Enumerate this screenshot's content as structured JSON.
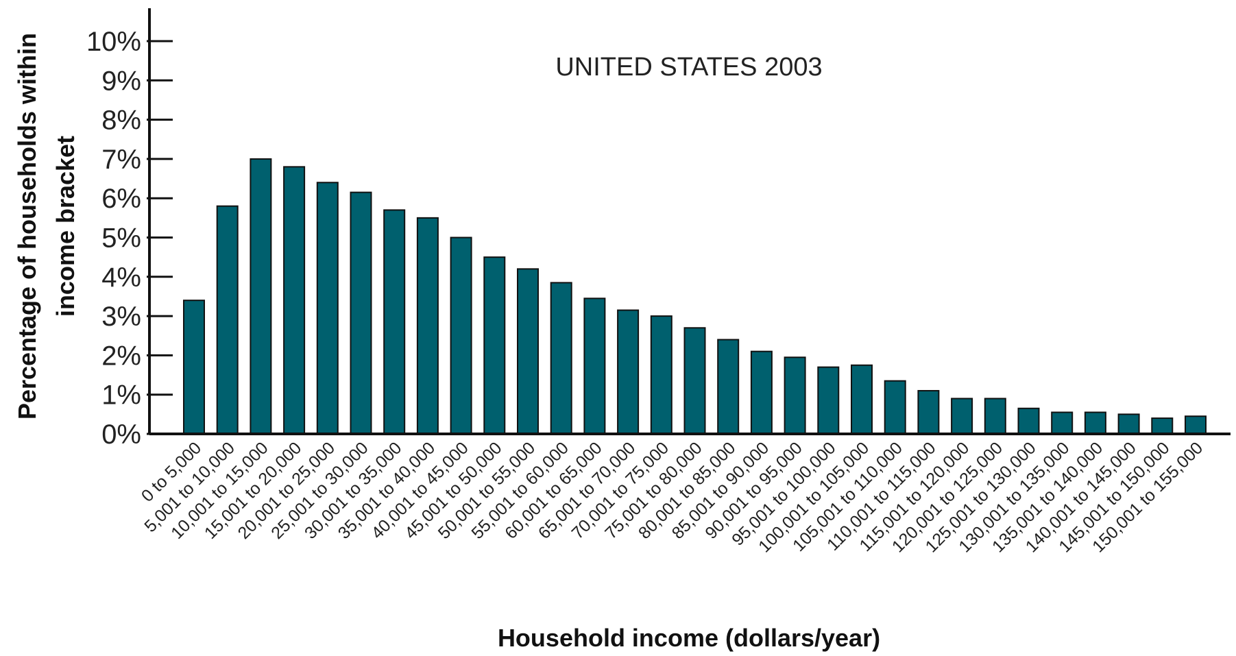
{
  "chart_data": {
    "type": "bar",
    "title": "UNITED STATES 2003",
    "xlabel": "Household income (dollars/year)",
    "ylabel_lines": [
      "Percentage of households within",
      "income bracket"
    ],
    "ylim": [
      0,
      10
    ],
    "yticks": [
      0,
      1,
      2,
      3,
      4,
      5,
      6,
      7,
      8,
      9,
      10
    ],
    "ytick_labels": [
      "0%",
      "1%",
      "2%",
      "3%",
      "4%",
      "5%",
      "6%",
      "7%",
      "8%",
      "9%",
      "10%"
    ],
    "grid": false,
    "bar_color": "#00606e",
    "categories": [
      "0 to 5,000",
      "5,001 to 10,000",
      "10,001 to 15,000",
      "15,001 to 20,000",
      "20,001 to 25,000",
      "25,001 to 30,000",
      "30,001 to 35,000",
      "35,001 to 40,000",
      "40,001 to 45,000",
      "45,001 to 50,000",
      "50,001 to 55,000",
      "55,001 to 60,000",
      "60,001 to 65,000",
      "65,001 to 70,000",
      "70,001 to 75,000",
      "75,001 to 80,000",
      "80,001 to 85,000",
      "85,001 to 90,000",
      "90,001 to 95,000",
      "95,001 to 100,000",
      "100,001 to 105,000",
      "105,001 to 110,000",
      "110,001 to 115,000",
      "115,001 to 120,000",
      "120,001 to 125,000",
      "125,001 to 130,000",
      "130,001 to 135,000",
      "135,001 to 140,000",
      "140,001 to 145,000",
      "145,001 to 150,000",
      "150,001 to 155,000"
    ],
    "values": [
      3.4,
      5.8,
      7.0,
      6.8,
      6.4,
      6.15,
      5.7,
      5.5,
      5.0,
      4.5,
      4.2,
      3.85,
      3.45,
      3.15,
      3.0,
      2.7,
      2.4,
      2.1,
      1.95,
      1.7,
      1.75,
      1.35,
      1.1,
      0.9,
      0.9,
      0.65,
      0.55,
      0.55,
      0.5,
      0.4,
      0.45
    ]
  }
}
